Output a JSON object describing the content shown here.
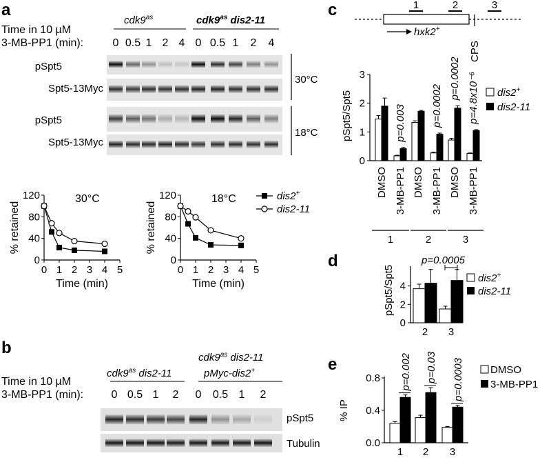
{
  "panel_a": {
    "letter": "a",
    "time_label_1": "Time in 10 µM",
    "time_label_2": "3-MB-PP1 (min):",
    "strain_1": "cdk9",
    "strain_1_sup": "as",
    "strain_2": "cdk9",
    "strain_2_sup": "as",
    "strain_2_suffix": " dis2-11",
    "timepoints": [
      "0",
      "0.5",
      "1",
      "2",
      "4"
    ],
    "blot_labels": [
      "pSpt5",
      "Spt5-13Myc",
      "pSpt5",
      "Spt5-13Myc"
    ],
    "temp_30": "30°C",
    "temp_18": "18°C"
  },
  "panel_b": {
    "letter": "b",
    "time_label_1": "Time in 10 µM",
    "time_label_2": "3-MB-PP1 (min):",
    "strain_1": "cdk9",
    "strain_1_sup": "as",
    "strain_1_suffix": " dis2-11",
    "strain_2_line1": "cdk9",
    "strain_2_line1_sup": "as",
    "strain_2_line1_suffix": " dis2-11",
    "strain_2_line2": "pMyc-dis2",
    "strain_2_line2_sup": "+",
    "timepoints": [
      "0",
      "0.5",
      "1",
      "2",
      "0",
      "0.5",
      "1",
      "2"
    ],
    "blot_labels": [
      "pSpt5",
      "Tubulin"
    ]
  },
  "panel_c": {
    "letter": "c",
    "gene_label": "hxk2",
    "gene_sup": "+",
    "cps_label": "CPS",
    "amplicons": [
      "1",
      "2",
      "3"
    ],
    "pvalues": [
      "p=0.003",
      "p=0.0002",
      "p=0.0002",
      "p=4.8x10⁻⁶"
    ],
    "treatments": [
      "DMSO",
      "3-MB-PP1"
    ],
    "legend_dis2": "dis2",
    "legend_dis2_sup": "+",
    "legend_dis211": "dis2-11"
  },
  "panel_d": {
    "letter": "d",
    "pvalue": "p=0.0005",
    "legend_dis2": "dis2",
    "legend_dis2_sup": "+",
    "legend_dis211": "dis2-11"
  },
  "panel_e": {
    "letter": "e",
    "pvalues": [
      "p=0.002",
      "p=0.03",
      "p=0.0003"
    ],
    "legend_dmso": "DMSO",
    "legend_drug": "3-MB-PP1"
  },
  "chart_data": [
    {
      "id": "a-30",
      "type": "line",
      "title": "30°C",
      "xlabel": "Time (min)",
      "ylabel": "% retained",
      "xlim": [
        0,
        5
      ],
      "ylim": [
        0,
        120
      ],
      "xticks": [
        0,
        1,
        2,
        3,
        4,
        5
      ],
      "yticks": [
        0,
        40,
        80,
        120
      ],
      "series": [
        {
          "name": "dis2+",
          "marker": "filled-square",
          "x": [
            0,
            0.5,
            1,
            2,
            4
          ],
          "y": [
            100,
            52,
            23,
            18,
            16
          ]
        },
        {
          "name": "dis2-11",
          "marker": "open-circle",
          "x": [
            0,
            0.5,
            1,
            2,
            4
          ],
          "y": [
            100,
            68,
            50,
            35,
            30
          ]
        }
      ]
    },
    {
      "id": "a-18",
      "type": "line",
      "title": "18°C",
      "xlabel": "Time (min)",
      "ylabel": "% retained",
      "xlim": [
        0,
        5
      ],
      "ylim": [
        0,
        120
      ],
      "xticks": [
        0,
        1,
        2,
        3,
        4,
        5
      ],
      "yticks": [
        0,
        40,
        80,
        120
      ],
      "legend": [
        "dis2+",
        "dis2-11"
      ],
      "series": [
        {
          "name": "dis2+",
          "marker": "filled-square",
          "x": [
            0,
            0.5,
            1,
            2,
            4
          ],
          "y": [
            100,
            67,
            41,
            28,
            27
          ]
        },
        {
          "name": "dis2-11",
          "marker": "open-circle",
          "x": [
            0,
            0.5,
            1,
            2,
            4
          ],
          "y": [
            100,
            90,
            79,
            55,
            40
          ]
        }
      ]
    },
    {
      "id": "c",
      "type": "bar",
      "ylabel": "pSpt5/Spt5",
      "ylim": [
        0,
        3
      ],
      "yticks": [
        0,
        1,
        2,
        3
      ],
      "categories": [
        "1 DMSO",
        "1 3-MB-PP1",
        "2 DMSO",
        "2 3-MB-PP1",
        "3 DMSO",
        "3 3-MB-PP1"
      ],
      "series": [
        {
          "name": "dis2+",
          "values": [
            1.45,
            0.17,
            1.33,
            0.27,
            0.72,
            0.25
          ],
          "errors": [
            0.12,
            0.02,
            0.06,
            0.03,
            0.06,
            0.02
          ]
        },
        {
          "name": "dis2-11",
          "values": [
            1.9,
            0.42,
            1.72,
            0.92,
            1.83,
            1.05
          ],
          "errors": [
            0.28,
            0.04,
            0.03,
            0.04,
            0.08,
            0.03
          ]
        }
      ]
    },
    {
      "id": "d",
      "type": "bar",
      "ylabel": "pSpt5/Spt5",
      "ylim": [
        0,
        6
      ],
      "yticks": [
        0,
        2,
        4
      ],
      "categories": [
        "2",
        "3"
      ],
      "series": [
        {
          "name": "dis2+",
          "values": [
            3.7,
            1.5
          ],
          "errors": [
            0.5,
            0.3
          ]
        },
        {
          "name": "dis2-11",
          "values": [
            4.3,
            4.6
          ],
          "errors": [
            1.5,
            1.2
          ]
        }
      ]
    },
    {
      "id": "e",
      "type": "bar",
      "ylabel": "% IP",
      "ylim": [
        0,
        0.8
      ],
      "yticks": [
        0.0,
        0.4,
        0.8
      ],
      "categories": [
        "1",
        "2",
        "3"
      ],
      "series": [
        {
          "name": "DMSO",
          "values": [
            0.24,
            0.31,
            0.19
          ],
          "errors": [
            0.02,
            0.03,
            0.01
          ]
        },
        {
          "name": "3-MB-PP1",
          "values": [
            0.56,
            0.62,
            0.44
          ],
          "errors": [
            0.03,
            0.06,
            0.02
          ]
        }
      ]
    }
  ]
}
